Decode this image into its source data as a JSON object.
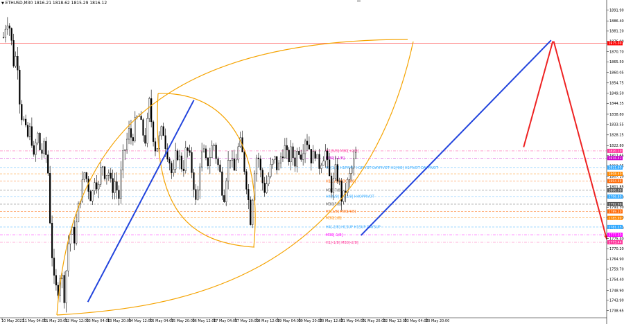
{
  "window": {
    "title": "ETHUSD,M30  1816.21 1818.62 1815.29 1816.12",
    "title_icon": "triangle-down-icon"
  },
  "chart_data": {
    "type": "candlestick",
    "symbol": "ETHUSD",
    "timeframe": "M30",
    "ohlc_header": {
      "open": 1816.21,
      "high": 1818.62,
      "low": 1815.29,
      "close": 1816.12
    },
    "ylim": [
      1735.3,
      1896.0
    ],
    "y_ticks": [
      "1891.90",
      "1886.40",
      "1881.20",
      "1876.00",
      "1870.70",
      "1865.50",
      "1860.05",
      "1854.75",
      "1849.50",
      "1844.35",
      "1838.80",
      "1833.55",
      "1828.25",
      "1822.80",
      "1817.65",
      "1812.35",
      "1807.10",
      "1801.85",
      "1796.50",
      "1791.30",
      "1786.00",
      "1780.80",
      "1775.40",
      "1770.20",
      "1764.90",
      "1759.70",
      "1754.40",
      "1748.90",
      "1743.90",
      "1738.65"
    ],
    "x_ticks": [
      "10 May 2023",
      "11 May 04:00",
      "11 May 20:00",
      "12 May 12:00",
      "13 May 04:00",
      "13 May 20:00",
      "14 May 12:00",
      "15 May 04:00",
      "15 May 20:00",
      "16 May 12:00",
      "17 May 04:00",
      "17 May 20:00",
      "18 May 12:00",
      "19 May 04:00",
      "19 May 20:00",
      "20 May 12:00",
      "21 May 04:00",
      "21 May 20:00",
      "22 May 12:00",
      "23 May 04:00",
      "23 May 20:00"
    ],
    "price_path": [
      1878,
      1888,
      1882,
      1865,
      1870,
      1840,
      1835,
      1826,
      1832,
      1815,
      1830,
      1818,
      1822,
      1815,
      1775,
      1752,
      1748,
      1760,
      1745,
      1772,
      1780,
      1775,
      1790,
      1800,
      1810,
      1802,
      1795,
      1808,
      1800,
      1815,
      1808,
      1810,
      1800,
      1805,
      1795,
      1815,
      1822,
      1830,
      1826,
      1835,
      1838,
      1830,
      1825,
      1845,
      1830,
      1820,
      1826,
      1832,
      1822,
      1815,
      1805,
      1820,
      1816,
      1810,
      1822,
      1816,
      1806,
      1790,
      1815,
      1820,
      1812,
      1818,
      1825,
      1815,
      1808,
      1795,
      1812,
      1818,
      1808,
      1820,
      1824,
      1813,
      1800,
      1784,
      1810,
      1820,
      1808,
      1800,
      1805,
      1812,
      1816,
      1810,
      1818,
      1822,
      1815,
      1820,
      1814,
      1822,
      1818,
      1827,
      1824,
      1815,
      1820,
      1812,
      1816,
      1820,
      1808,
      1800,
      1810,
      1805,
      1794,
      1800,
      1806,
      1812,
      1818
    ],
    "levels": [
      {
        "price": 1875.0,
        "label": "1875.00",
        "color": "#ff0000",
        "style": "solid",
        "text": ""
      },
      {
        "price": 1820.1,
        "label": "1820.10",
        "color": "#ff3399",
        "style": "dashdot",
        "text": "H1[5/8] M30[+2/8]"
      },
      {
        "price": 1816.43,
        "label": "1816.43",
        "color": "#cc00cc",
        "style": "dashdot",
        "text": "M30[+1/8]"
      },
      {
        "price": 1811.6,
        "label": "1811.60",
        "color": "#33aaff",
        "style": "dash",
        "text": "H4[1/8] H1PIVOT H1PIVOT DAYPIVOT H1[4/8] H1PIVOT DAYPIVOT"
      },
      {
        "price": 1808.4,
        "label": "1808.40",
        "color": "#ff8800",
        "style": "dash",
        "text": ""
      },
      {
        "price": 1804.69,
        "label": "1804.69",
        "color": "#ff6600",
        "style": "dash",
        "text": "H1[3/8] M30[8/8]"
      },
      {
        "price": 1800.0,
        "label": "1800.00",
        "color": "#555555",
        "style": "dash",
        "text": "M30[7/8]"
      },
      {
        "price": 1796.8,
        "label": "1796.80",
        "color": "#33aaff",
        "style": "dash",
        "text": "H4[0/8] H1[2/8] H4OPPIVOT"
      },
      {
        "price": 1792.9,
        "label": "1792.90",
        "color": "#555555",
        "style": "dash",
        "text": "M30[5/8]"
      },
      {
        "price": 1789.2,
        "label": "1789.20",
        "color": "#ff6600",
        "style": "dash",
        "text": "H1[1/8] M30[4/8]"
      },
      {
        "price": 1785.9,
        "label": "1785.90",
        "color": "#ff8800",
        "style": "dash",
        "text": "M30[1/8]"
      },
      {
        "price": 1781.25,
        "label": "1781.25",
        "color": "#33aaff",
        "style": "dash",
        "text": "H4[-2/8] H1SUP H1SUP DAYSUP"
      },
      {
        "price": 1777.3,
        "label": "1777.30",
        "color": "#ff00ff",
        "style": "dashdot",
        "text": "M30[-1/8]"
      },
      {
        "price": 1773.44,
        "label": "1773.44",
        "color": "#ff3399",
        "style": "dashdot",
        "text": "H1[-1/8] M30[-2/8]"
      }
    ],
    "trendlines": [
      {
        "color": "#2244dd",
        "from": [
          1743.0,
          "12 May 00:30"
        ],
        "to": [
          1846.0,
          "14 May 12:30"
        ]
      },
      {
        "color": "#2244dd",
        "from": [
          1777.0,
          "18 May 11:00"
        ],
        "to": [
          1876.5,
          "22 May 22:30"
        ]
      },
      {
        "color": "#ee2222",
        "from": [
          1822.0,
          "22 May 07:00"
        ],
        "to": [
          1876.0,
          "22 May 23:30"
        ]
      },
      {
        "color": "#ee2222",
        "from": [
          1876.0,
          "23 May 00:00"
        ],
        "to": [
          1775.0,
          "24 May 06:00"
        ]
      }
    ],
    "arcs_color": "#f5a300",
    "grid": false
  }
}
